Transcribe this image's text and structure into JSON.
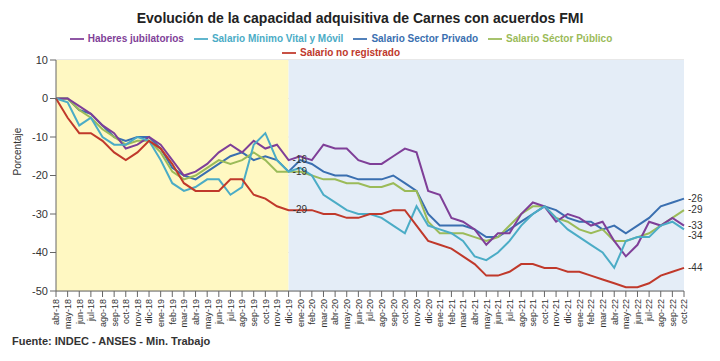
{
  "chart_data": {
    "type": "line",
    "title": "Evolución de la capacidad adquisitiva de Carnes con acuerdos FMI",
    "y_label": "Porcentaje",
    "source": "Fuente: INDEC - ANSES - Min. Trabajo",
    "categories": [
      "abr-18",
      "may-18",
      "jun-18",
      "jul-18",
      "ago-18",
      "sep-18",
      "oct-18",
      "nov-18",
      "dic-18",
      "ene-19",
      "feb-19",
      "mar-19",
      "abr-19",
      "may-19",
      "jun-19",
      "jul-19",
      "ago-19",
      "sep-19",
      "oct-19",
      "nov-19",
      "dic-19",
      "ene-20",
      "feb-20",
      "mar-20",
      "abr-20",
      "may-20",
      "jun-20",
      "jul-20",
      "ago-20",
      "sep-20",
      "oct-20",
      "nov-20",
      "dic-20",
      "ene-21",
      "feb-21",
      "mar-21",
      "abr-21",
      "may-21",
      "jun-21",
      "jul-21",
      "ago-21",
      "sep-21",
      "oct-21",
      "nov-21",
      "dic-21",
      "ene-22",
      "feb-22",
      "mar-22",
      "abr-22",
      "may-22",
      "jun-22",
      "jul-22",
      "ago-22",
      "sep-22",
      "oct-22"
    ],
    "series": [
      {
        "name": "Salario Sector Privado",
        "color": "#3a6fb0",
        "values": [
          0,
          0,
          -3,
          -4,
          -7,
          -10,
          -11,
          -10,
          -10,
          -13,
          -18,
          -20,
          -21,
          -19,
          -17,
          -15,
          -14,
          -16,
          -15,
          -16,
          -19,
          -16,
          -17,
          -19,
          -20,
          -20,
          -21,
          -21,
          -21,
          -20,
          -22,
          -24,
          -30,
          -33,
          -33,
          -33,
          -34,
          -36,
          -36,
          -34,
          -32,
          -30,
          -28,
          -29,
          -31,
          -32,
          -32,
          -34,
          -33,
          -35,
          -33,
          -31,
          -28,
          -27,
          -26
        ]
      },
      {
        "name": "Salario Séctor Público",
        "color": "#9bbb59",
        "values": [
          0,
          0,
          -3,
          -5,
          -8,
          -10,
          -12,
          -11,
          -11,
          -14,
          -19,
          -21,
          -20,
          -18,
          -16,
          -17,
          -16,
          -14,
          -16,
          -19,
          -19,
          -19,
          -20,
          -21,
          -21,
          -22,
          -22,
          -23,
          -23,
          -22,
          -24,
          -24,
          -32,
          -35,
          -35,
          -35,
          -36,
          -37,
          -36,
          -33,
          -30,
          -28,
          -28,
          -31,
          -32,
          -34,
          -35,
          -34,
          -37,
          -37,
          -36,
          -35,
          -33,
          -31,
          -29
        ]
      },
      {
        "name": "Haberes jubilatorios",
        "color": "#7f3f98",
        "values": [
          0,
          0,
          -2,
          -4,
          -7,
          -9,
          -13,
          -12,
          -10,
          -12,
          -16,
          -20,
          -19,
          -17,
          -14,
          -12,
          -14,
          -11,
          -13,
          -12,
          -16,
          -15,
          -16,
          -12,
          -13,
          -13,
          -16,
          -17,
          -17,
          -15,
          -13,
          -14,
          -24,
          -25,
          -31,
          -32,
          -34,
          -38,
          -35,
          -35,
          -30,
          -27,
          -28,
          -32,
          -30,
          -31,
          -33,
          -32,
          -37,
          -41,
          -38,
          -32,
          -33,
          -31,
          -33
        ]
      },
      {
        "name": "Salario Mínimo Vital y Móvil",
        "color": "#4bacc6",
        "values": [
          0,
          -1,
          -7,
          -5,
          -10,
          -12,
          -12,
          -10,
          -11,
          -16,
          -22,
          -24,
          -23,
          -21,
          -21,
          -25,
          -23,
          -12,
          -9,
          -16,
          -19,
          -18,
          -20,
          -25,
          -27,
          -29,
          -30,
          -30,
          -31,
          -33,
          -35,
          -28,
          -33,
          -34,
          -35,
          -37,
          -41,
          -42,
          -40,
          -37,
          -33,
          -30,
          -28,
          -31,
          -34,
          -36,
          -38,
          -40,
          -44,
          -37,
          -36,
          -36,
          -33,
          -32,
          -34
        ]
      },
      {
        "name": "Salario no registrado",
        "color": "#c0392b",
        "values": [
          0,
          -5,
          -9,
          -9,
          -11,
          -14,
          -16,
          -14,
          -11,
          -13,
          -17,
          -22,
          -24,
          -24,
          -24,
          -21,
          -21,
          -25,
          -26,
          -28,
          -29,
          -29,
          -29,
          -30,
          -30,
          -31,
          -31,
          -30,
          -30,
          -29,
          -29,
          -33,
          -37,
          -38,
          -39,
          -41,
          -43,
          -46,
          -46,
          -45,
          -43,
          -43,
          -44,
          -44,
          -45,
          -45,
          -46,
          -47,
          -48,
          -49,
          -49,
          -48,
          -46,
          -45,
          -44
        ]
      }
    ],
    "annotations": [
      {
        "series": "Haberes jubilatorios",
        "x": "dic-19",
        "value": -16
      },
      {
        "series": "Salario Sector Privado",
        "x": "dic-19",
        "value": -19
      },
      {
        "series": "Salario no registrado",
        "x": "dic-19",
        "value": -29
      },
      {
        "series": "Salario Sector Privado",
        "x": "oct-22",
        "value": -26
      },
      {
        "series": "Salario Séctor Público",
        "x": "oct-22",
        "value": -29
      },
      {
        "series": "Haberes jubilatorios",
        "x": "oct-22",
        "value": -33
      },
      {
        "series": "Salario Mínimo Vital y Móvil",
        "x": "oct-22",
        "value": -34
      },
      {
        "series": "Salario no registrado",
        "x": "oct-22",
        "value": -44
      }
    ],
    "periods": [
      {
        "from": "abr-18",
        "to": "dic-19",
        "color": "#fff8c2"
      },
      {
        "from": "dic-19",
        "to": "oct-22",
        "color": "#e4edf7"
      }
    ],
    "ylim": [
      -50,
      10
    ],
    "yticks": [
      -50,
      -40,
      -30,
      -20,
      -10,
      0,
      10
    ],
    "grid": true,
    "legend": "top"
  }
}
